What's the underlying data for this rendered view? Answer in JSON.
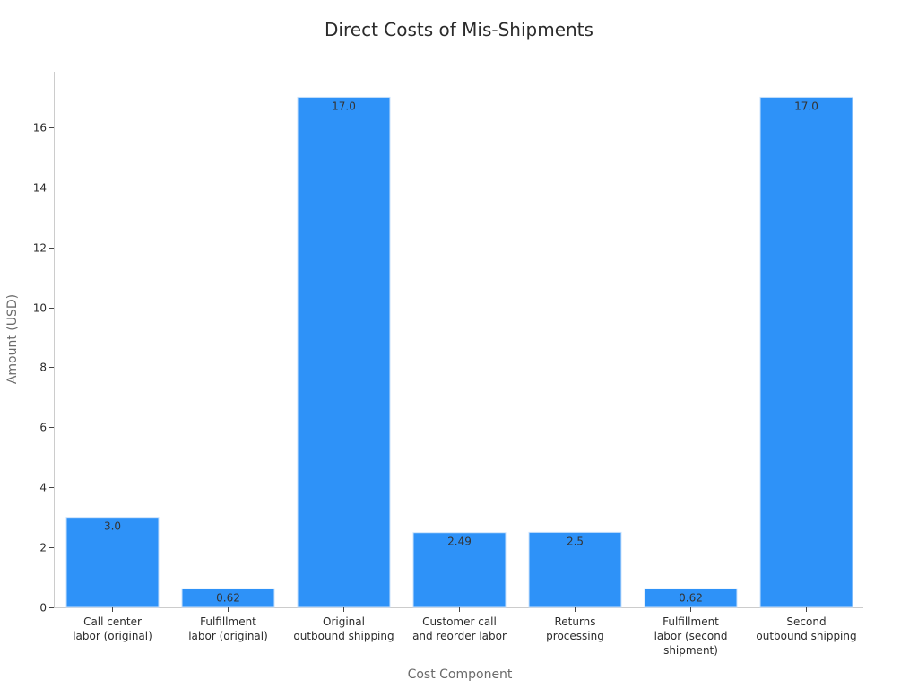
{
  "chart_data": {
    "type": "bar",
    "title": "Direct Costs of Mis-Shipments",
    "xlabel": "Cost Component",
    "ylabel": "Amount (USD)",
    "categories": [
      [
        "Call center",
        "labor (original)"
      ],
      [
        "Fulfillment",
        "labor (original)"
      ],
      [
        "Original",
        "outbound shipping"
      ],
      [
        "Customer call",
        "and reorder labor"
      ],
      [
        "Returns",
        "processing"
      ],
      [
        "Fulfillment",
        "labor (second",
        "shipment)"
      ],
      [
        "Second",
        "outbound shipping"
      ]
    ],
    "values": [
      3.0,
      0.62,
      17.0,
      2.49,
      2.5,
      0.62,
      17.0
    ],
    "value_labels": [
      "3.0",
      "0.62",
      "17.0",
      "2.49",
      "2.5",
      "0.62",
      "17.0"
    ],
    "ylim": [
      0,
      17.85
    ],
    "yticks": [
      0,
      2,
      4,
      6,
      8,
      10,
      12,
      14,
      16
    ],
    "grid": false,
    "legend": "none",
    "colors": {
      "bar": "#2e92f8",
      "bar_edge": "#c9e1fb",
      "axis": "#cccccc"
    }
  }
}
